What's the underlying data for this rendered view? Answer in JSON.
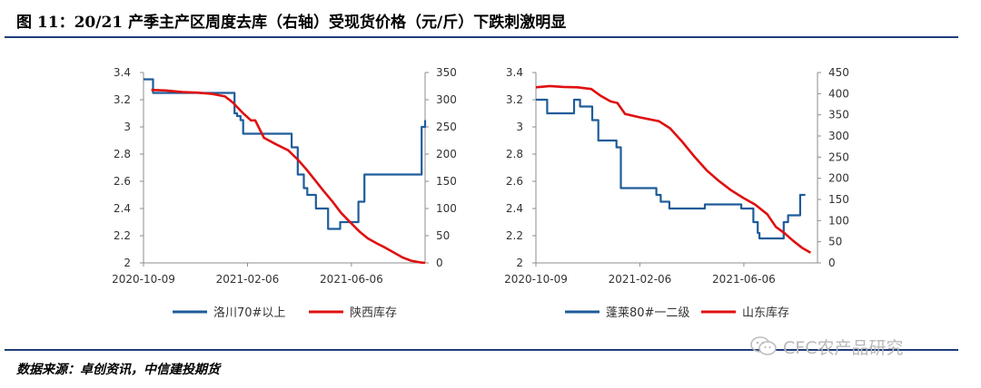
{
  "figure": {
    "title": "图 11：20/21 产季主产区周度去库（右轴）受现货价格（元/斤）下跌刺激明显",
    "source": "数据来源：卓创资讯，中信建投期货",
    "watermark": "CFC农产品研究",
    "watermark_icon": "wechat-icon",
    "rule_color": "#1f3d7a"
  },
  "chart_data": [
    {
      "type": "line",
      "x_start": "2020-10-09",
      "x_end": "2021-08-30",
      "xticks": [
        "2020-10-09",
        "2021-02-06",
        "2021-06-06"
      ],
      "ylim_left": [
        2,
        3.4
      ],
      "yticks_left": [
        "2",
        "2.2",
        "2.4",
        "2.6",
        "2.8",
        "3",
        "3.2",
        "3.4"
      ],
      "ylim_right": [
        0,
        350
      ],
      "yticks_right": [
        "0",
        "50",
        "100",
        "150",
        "200",
        "250",
        "300",
        "350"
      ],
      "grid": false,
      "legend_position": "bottom",
      "series": [
        {
          "name": "洛川70#以上",
          "axis": "left",
          "color": "#1f5c99",
          "step": true,
          "points": [
            [
              "2020-10-09",
              3.35
            ],
            [
              "2020-10-16",
              3.35
            ],
            [
              "2020-10-20",
              3.25
            ],
            [
              "2021-01-18",
              3.25
            ],
            [
              "2021-01-22",
              3.1
            ],
            [
              "2021-01-25",
              3.08
            ],
            [
              "2021-01-29",
              3.05
            ],
            [
              "2021-02-01",
              2.95
            ],
            [
              "2021-03-22",
              2.95
            ],
            [
              "2021-03-29",
              2.85
            ],
            [
              "2021-04-05",
              2.65
            ],
            [
              "2021-04-12",
              2.55
            ],
            [
              "2021-04-16",
              2.5
            ],
            [
              "2021-04-26",
              2.4
            ],
            [
              "2021-05-10",
              2.25
            ],
            [
              "2021-05-24",
              2.3
            ],
            [
              "2021-06-07",
              2.3
            ],
            [
              "2021-06-14",
              2.45
            ],
            [
              "2021-06-21",
              2.65
            ],
            [
              "2021-08-25",
              2.65
            ],
            [
              "2021-08-26",
              3.0
            ],
            [
              "2021-08-30",
              3.05
            ]
          ]
        },
        {
          "name": "陕西库存",
          "axis": "right",
          "color": "#e01010",
          "step": false,
          "points": [
            [
              "2020-10-18",
              318
            ],
            [
              "2020-11-04",
              317
            ],
            [
              "2020-11-23",
              314
            ],
            [
              "2020-12-10",
              313
            ],
            [
              "2020-12-26",
              311
            ],
            [
              "2021-01-11",
              306
            ],
            [
              "2021-01-20",
              295
            ],
            [
              "2021-02-01",
              275
            ],
            [
              "2021-02-10",
              262
            ],
            [
              "2021-02-15",
              262
            ],
            [
              "2021-02-25",
              230
            ],
            [
              "2021-03-11",
              218
            ],
            [
              "2021-03-25",
              207
            ],
            [
              "2021-04-05",
              190
            ],
            [
              "2021-04-15",
              172
            ],
            [
              "2021-04-25",
              152
            ],
            [
              "2021-05-05",
              132
            ],
            [
              "2021-05-15",
              113
            ],
            [
              "2021-05-25",
              92
            ],
            [
              "2021-06-05",
              74
            ],
            [
              "2021-06-15",
              58
            ],
            [
              "2021-06-25",
              45
            ],
            [
              "2021-07-05",
              36
            ],
            [
              "2021-07-15",
              28
            ],
            [
              "2021-07-25",
              19
            ],
            [
              "2021-08-04",
              10
            ],
            [
              "2021-08-14",
              4
            ],
            [
              "2021-08-24",
              1
            ],
            [
              "2021-08-30",
              0
            ]
          ]
        }
      ]
    },
    {
      "type": "line",
      "x_start": "2020-10-09",
      "x_end": "2021-08-30",
      "xticks": [
        "2020-10-09",
        "2021-02-06",
        "2021-06-06"
      ],
      "ylim_left": [
        2,
        3.4
      ],
      "yticks_left": [
        "2",
        "2.2",
        "2.4",
        "2.6",
        "2.8",
        "3",
        "3.2",
        "3.4"
      ],
      "ylim_right": [
        0,
        450
      ],
      "yticks_right": [
        "0",
        "50",
        "100",
        "150",
        "200",
        "250",
        "300",
        "350",
        "400",
        "450"
      ],
      "grid": false,
      "legend_position": "bottom",
      "series": [
        {
          "name": "蓬莱80#一二级",
          "axis": "left",
          "color": "#1f5c99",
          "step": true,
          "points": [
            [
              "2020-10-09",
              3.2
            ],
            [
              "2020-10-19",
              3.2
            ],
            [
              "2020-10-22",
              3.1
            ],
            [
              "2020-11-18",
              3.1
            ],
            [
              "2020-11-22",
              3.2
            ],
            [
              "2020-11-29",
              3.15
            ],
            [
              "2020-12-13",
              3.05
            ],
            [
              "2020-12-20",
              2.9
            ],
            [
              "2021-01-10",
              2.85
            ],
            [
              "2021-01-15",
              2.55
            ],
            [
              "2021-02-20",
              2.55
            ],
            [
              "2021-02-25",
              2.5
            ],
            [
              "2021-03-02",
              2.45
            ],
            [
              "2021-03-12",
              2.4
            ],
            [
              "2021-04-18",
              2.4
            ],
            [
              "2021-04-22",
              2.43
            ],
            [
              "2021-05-30",
              2.43
            ],
            [
              "2021-06-03",
              2.4
            ],
            [
              "2021-06-17",
              2.3
            ],
            [
              "2021-06-22",
              2.22
            ],
            [
              "2021-06-24",
              2.18
            ],
            [
              "2021-07-20",
              2.18
            ],
            [
              "2021-07-22",
              2.3
            ],
            [
              "2021-07-27",
              2.35
            ],
            [
              "2021-08-05",
              2.35
            ],
            [
              "2021-08-10",
              2.5
            ],
            [
              "2021-08-16",
              2.5
            ]
          ]
        },
        {
          "name": "山东库存",
          "axis": "right",
          "color": "#e01010",
          "step": false,
          "points": [
            [
              "2020-10-09",
              415
            ],
            [
              "2020-10-25",
              418
            ],
            [
              "2020-11-10",
              416
            ],
            [
              "2020-11-26",
              415
            ],
            [
              "2020-12-12",
              411
            ],
            [
              "2020-12-22",
              396
            ],
            [
              "2021-01-03",
              382
            ],
            [
              "2021-01-11",
              378
            ],
            [
              "2021-01-20",
              352
            ],
            [
              "2021-02-06",
              344
            ],
            [
              "2021-02-28",
              335
            ],
            [
              "2021-03-13",
              318
            ],
            [
              "2021-03-27",
              286
            ],
            [
              "2021-04-10",
              251
            ],
            [
              "2021-04-24",
              219
            ],
            [
              "2021-05-08",
              194
            ],
            [
              "2021-05-22",
              172
            ],
            [
              "2021-06-05",
              154
            ],
            [
              "2021-06-19",
              138
            ],
            [
              "2021-07-03",
              115
            ],
            [
              "2021-07-13",
              85
            ],
            [
              "2021-07-23",
              70
            ],
            [
              "2021-08-02",
              52
            ],
            [
              "2021-08-12",
              36
            ],
            [
              "2021-08-22",
              24
            ]
          ]
        }
      ]
    }
  ]
}
